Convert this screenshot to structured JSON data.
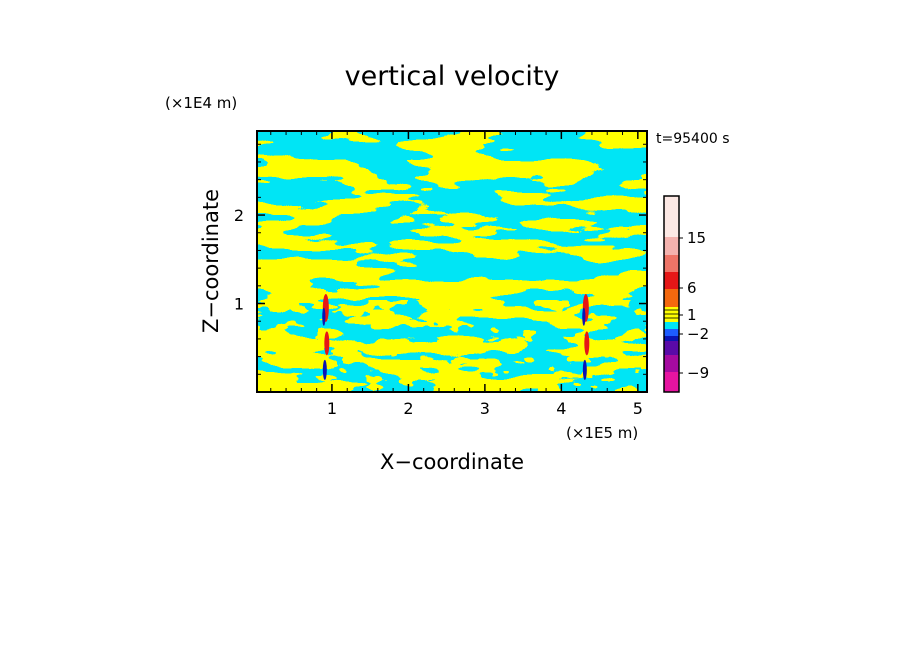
{
  "chart_data": {
    "type": "heatmap",
    "title": "vertical velocity",
    "xlabel": "X−coordinate",
    "ylabel": "Z−coordinate",
    "x_unit": "(×1E5 m)",
    "y_unit": "(×1E4 m)",
    "time_label": "t=95400 s",
    "xlim": [
      0.02,
      5.12
    ],
    "ylim": [
      0.0,
      2.95
    ],
    "x_ticks": [
      "1",
      "2",
      "3",
      "4",
      "5"
    ],
    "x_tick_values": [
      1,
      2,
      3,
      4,
      5
    ],
    "y_ticks": [
      "1",
      "2"
    ],
    "y_tick_values": [
      1,
      2
    ],
    "grid": false,
    "colorbar": {
      "labels": [
        "15",
        "6",
        "1",
        "−2",
        "−9"
      ],
      "colors": [
        "#fce8e4",
        "#f4b2ae",
        "#ee7467",
        "#e51717",
        "#f4680e",
        "#ffff00",
        "#00e5f5",
        "#1d5cff",
        "#0a14b4",
        "#5a0aa8",
        "#a50aa0",
        "#e614a0"
      ]
    },
    "field_colors": {
      "positive": "#ffff00",
      "negative": "#00e5f5",
      "updraft_core": "#e51717",
      "downdraft_core": "#0a14b4"
    },
    "updraft_columns_x": [
      0.92,
      4.32
    ]
  }
}
